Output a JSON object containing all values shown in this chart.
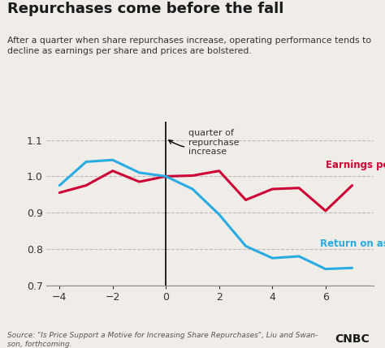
{
  "title": "Repurchases come before the fall",
  "subtitle": "After a quarter when share repurchases increase, operating performance tends to\ndecline as earnings per share and prices are bolstered.",
  "source": "Source: \"Is Price Support a Motive for Increasing Share Repurchases\", Liu and Swan-\nson, forthcoming.",
  "eps_x": [
    -4,
    -3,
    -2,
    -1,
    0,
    1,
    2,
    3,
    4,
    5,
    6,
    7
  ],
  "eps_y": [
    0.955,
    0.975,
    1.015,
    0.985,
    1.0,
    1.002,
    1.015,
    0.935,
    0.965,
    0.968,
    0.905,
    0.975
  ],
  "roa_x": [
    -4,
    -3,
    -2,
    -1,
    0,
    1,
    2,
    3,
    4,
    5,
    6,
    7
  ],
  "roa_y": [
    0.975,
    1.04,
    1.045,
    1.01,
    1.0,
    0.965,
    0.895,
    0.808,
    0.775,
    0.78,
    0.745,
    0.748
  ],
  "eps_color": "#cc0033",
  "roa_color": "#29abe2",
  "bg_color": "#f0ede8",
  "title_color": "#1a1a1a",
  "subtitle_color": "#333333",
  "xlim": [
    -4.5,
    7.8
  ],
  "ylim": [
    0.7,
    1.15
  ],
  "yticks": [
    0.7,
    0.8,
    0.9,
    1.0,
    1.1
  ],
  "xticks": [
    -4,
    -2,
    0,
    2,
    4,
    6
  ],
  "annotation_text": "quarter of\nrepurchase\nincrease",
  "eps_label": "Earnings per share",
  "roa_label": "Return on assets"
}
